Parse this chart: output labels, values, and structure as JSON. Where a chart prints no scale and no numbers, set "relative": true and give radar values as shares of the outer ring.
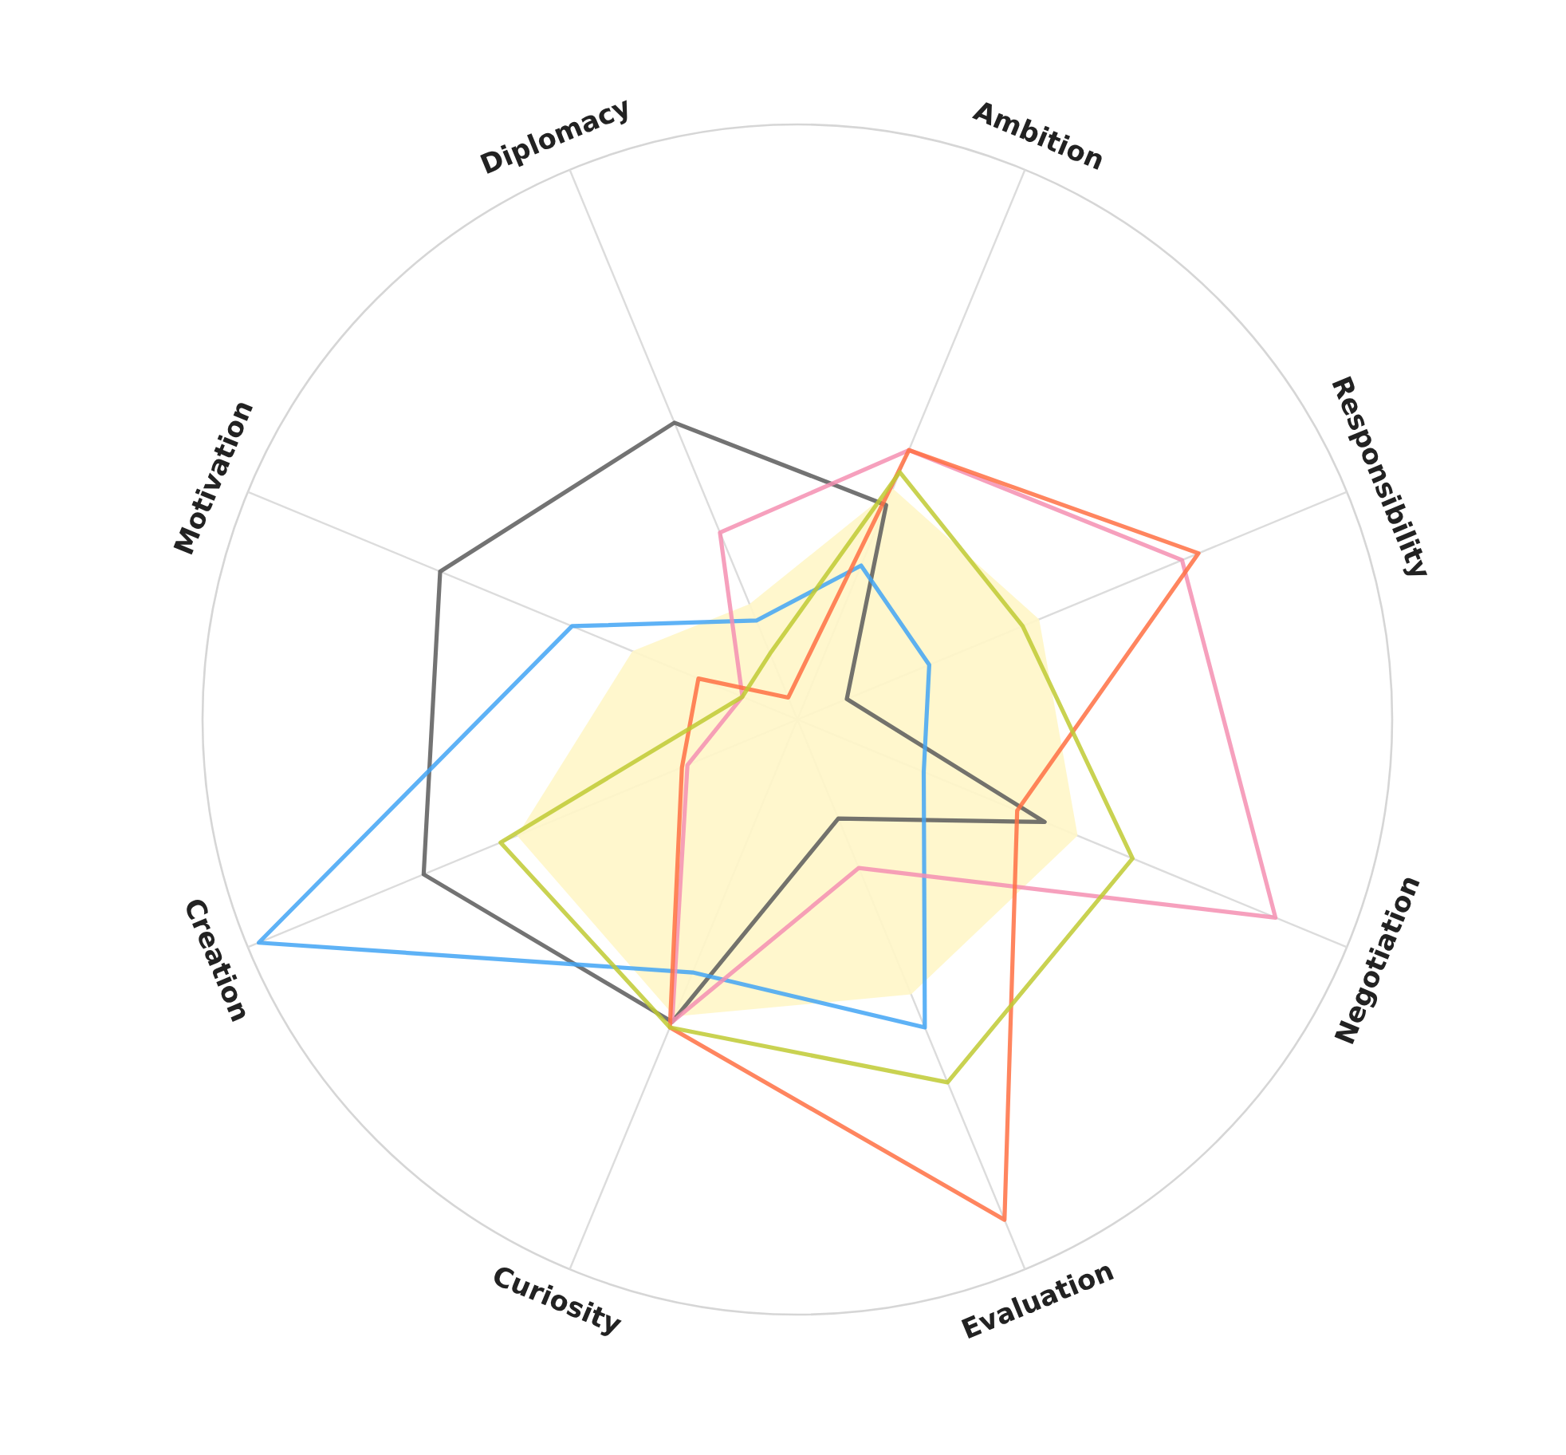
{
  "chart_data": {
    "type": "radar",
    "relative": true,
    "grid": true,
    "categories": [
      "Ambition",
      "Responsibility",
      "Negotiation",
      "Evaluation",
      "Curiosity",
      "Creation",
      "Motivation",
      "Diplomacy"
    ],
    "series": [
      {
        "type": "area",
        "color": "#fff6c8",
        "values": [
          0.42,
          0.44,
          0.51,
          0.5,
          0.54,
          0.51,
          0.3,
          0.21
        ]
      },
      {
        "color": "#5a5a5a",
        "values": [
          0.39,
          0.09,
          0.45,
          0.18,
          0.55,
          0.68,
          0.65,
          0.54
        ]
      },
      {
        "color": "#42a5f5",
        "values": [
          0.28,
          0.24,
          0.23,
          0.56,
          0.46,
          0.98,
          0.41,
          0.18
        ]
      },
      {
        "color": "#f48fb1",
        "values": [
          0.49,
          0.7,
          0.87,
          0.27,
          0.55,
          0.2,
          0.1,
          0.34
        ]
      },
      {
        "color": "#ff7043",
        "values": [
          0.49,
          0.73,
          0.4,
          0.91,
          0.56,
          0.21,
          0.18,
          0.04
        ]
      },
      {
        "color": "#c0ca33",
        "values": [
          0.45,
          0.41,
          0.61,
          0.66,
          0.56,
          0.54,
          0.1,
          0.12
        ]
      }
    ]
  }
}
